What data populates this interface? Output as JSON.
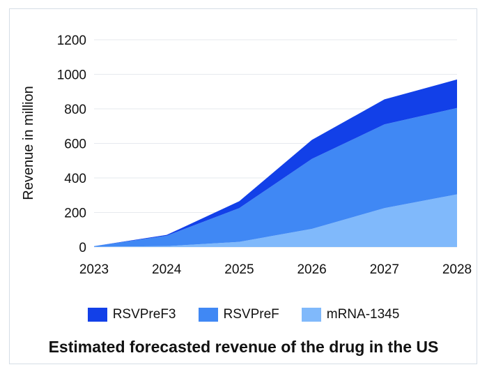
{
  "chart_data": {
    "type": "area",
    "stacked": true,
    "title": "Estimated forecasted revenue of the drug in the US",
    "xlabel": "",
    "ylabel": "Revenue in million",
    "categories": [
      "2023",
      "2024",
      "2025",
      "2026",
      "2027",
      "2028"
    ],
    "ylim": [
      0,
      1200
    ],
    "yticks": [
      0,
      200,
      400,
      600,
      800,
      1000,
      1200
    ],
    "grid": true,
    "legend_position": "bottom",
    "series": [
      {
        "name": "mRNA-1345",
        "color": "#80b9fb",
        "values": [
          2,
          5,
          30,
          105,
          225,
          305
        ]
      },
      {
        "name": "RSVPreF",
        "color": "#4088f4",
        "values": [
          3,
          60,
          195,
          405,
          485,
          500
        ]
      },
      {
        "name": "RSVPreF3",
        "color": "#1240e8",
        "values": [
          0,
          5,
          40,
          110,
          145,
          165
        ]
      }
    ],
    "legend_order": [
      "RSVPreF3",
      "RSVPreF",
      "mRNA-1345"
    ]
  }
}
